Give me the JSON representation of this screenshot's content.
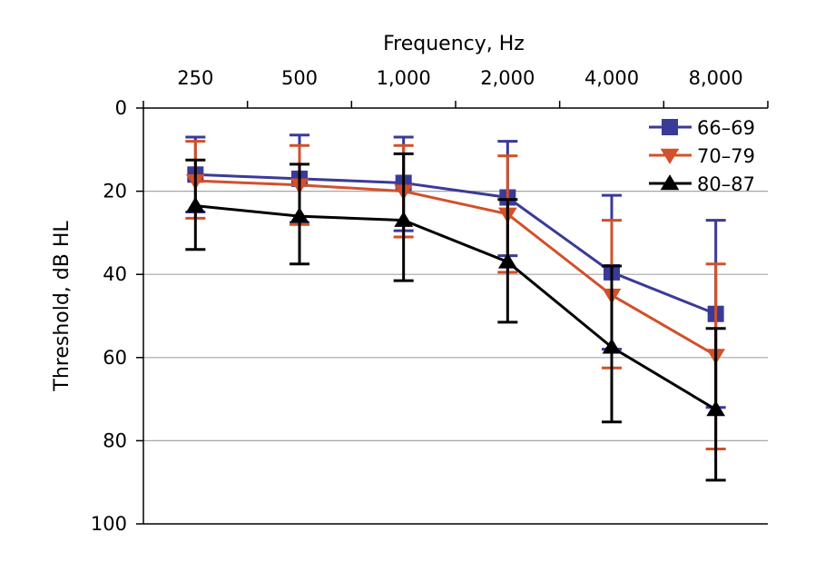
{
  "chart_data": {
    "type": "line",
    "xlabel": "Frequency, Hz",
    "ylabel": "Threshold, dB HL",
    "x_axis_position": "top",
    "y_axis_inverted": true,
    "categories": [
      "250",
      "500",
      "1,000",
      "2,000",
      "4,000",
      "8,000"
    ],
    "y_ticks": [
      "0",
      "20",
      "40",
      "60",
      "80",
      "100"
    ],
    "ylim": [
      0,
      100
    ],
    "grid": "horizontal",
    "legend_position": "top-right",
    "series": [
      {
        "name": "66–69",
        "color": "#3a3a98",
        "marker": "square",
        "values": [
          16,
          17,
          18,
          21.5,
          39.5,
          49.5
        ],
        "error_low": [
          7,
          6.5,
          7,
          8,
          21,
          27
        ],
        "error_high": [
          25,
          27.5,
          29.5,
          35.5,
          58,
          72
        ]
      },
      {
        "name": "70–79",
        "color": "#d2502a",
        "marker": "triangle-down",
        "values": [
          17.5,
          18.5,
          20,
          25.5,
          45,
          59.5
        ],
        "error_low": [
          8,
          9,
          9,
          11.5,
          27,
          37.5
        ],
        "error_high": [
          26.5,
          28,
          31,
          39.5,
          62.5,
          82
        ]
      },
      {
        "name": "80–87",
        "color": "#000000",
        "marker": "triangle-up",
        "values": [
          23.5,
          26,
          27,
          37,
          57.5,
          72.5
        ],
        "error_low": [
          12.5,
          13.5,
          11,
          22,
          38,
          53
        ],
        "error_high": [
          34,
          37.5,
          41.5,
          51.5,
          75.5,
          89.5
        ]
      }
    ]
  }
}
